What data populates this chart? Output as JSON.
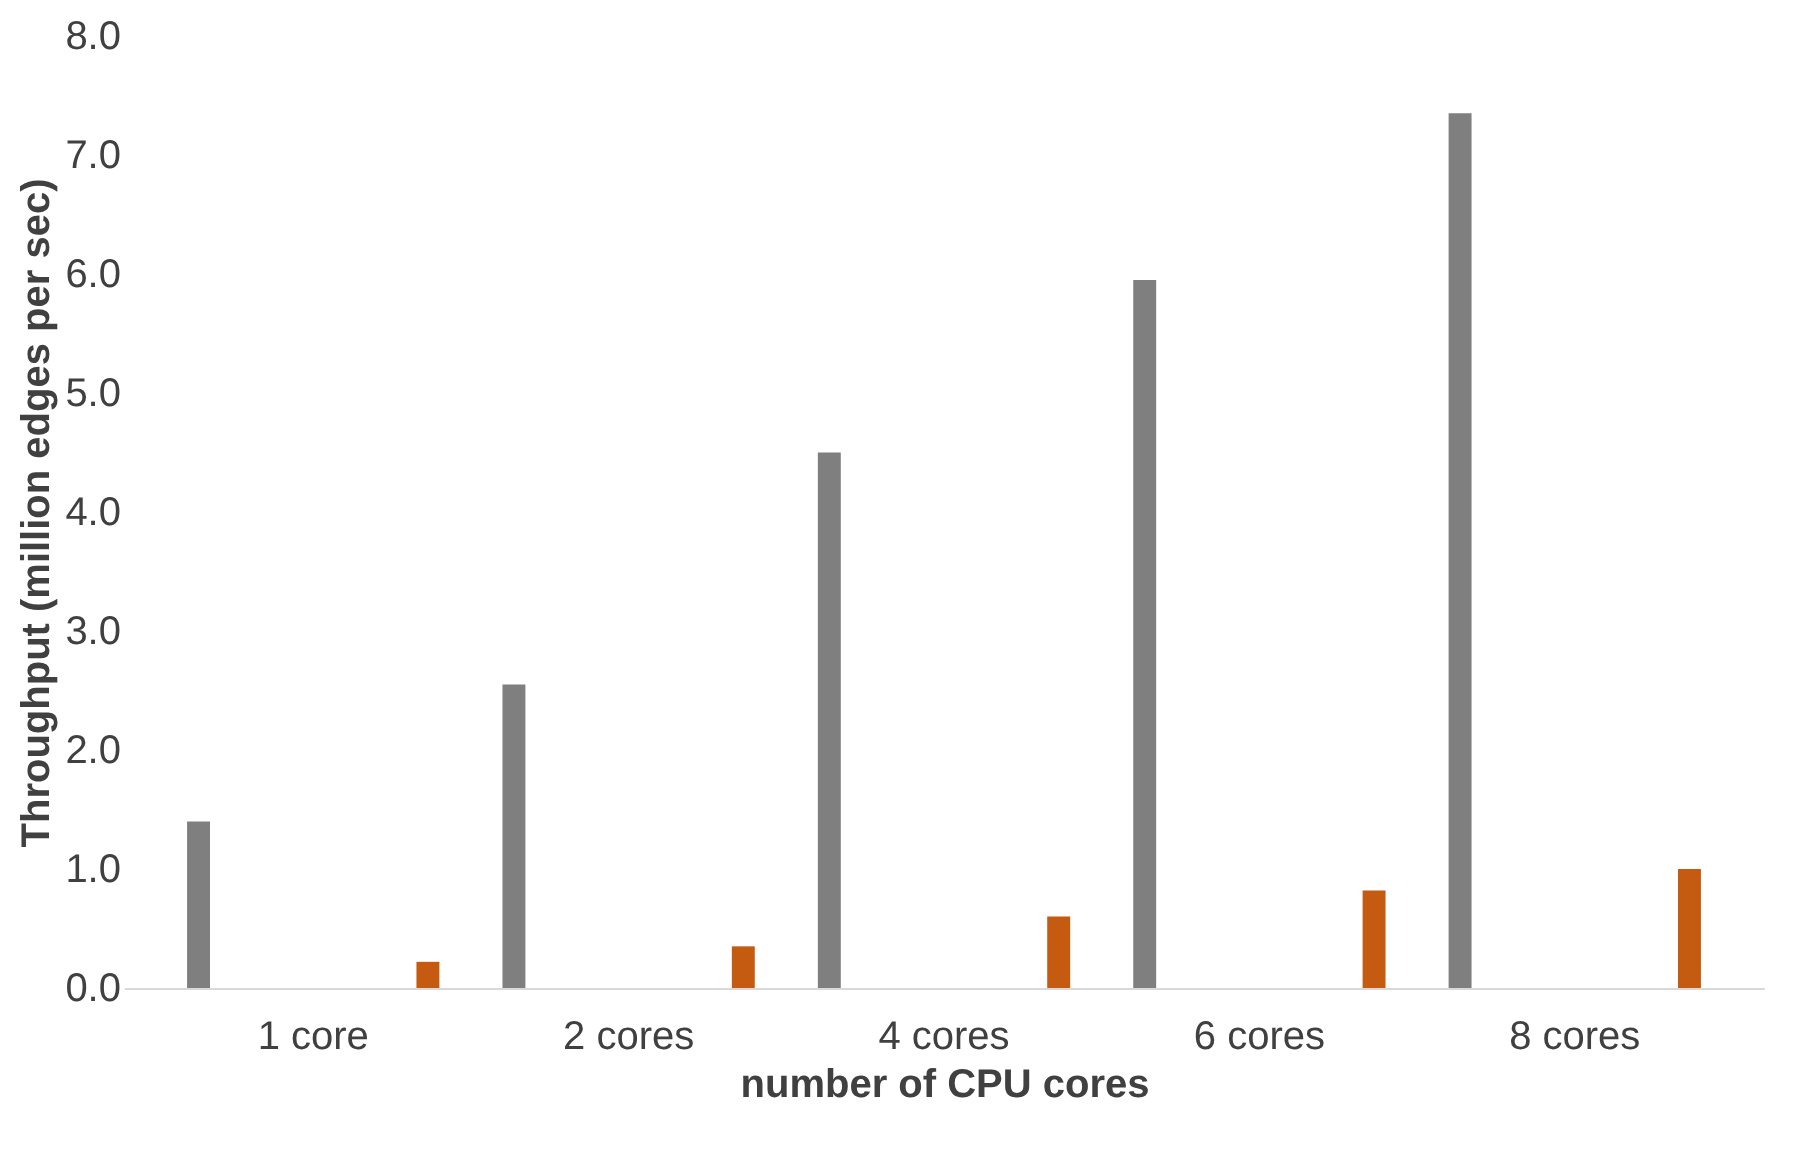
{
  "chart_data": {
    "type": "bar",
    "xlabel": "number of CPU cores",
    "ylabel": "Throughput (million edges per sec)",
    "categories": [
      "1 core",
      "2 cores",
      "4 cores",
      "6 cores",
      "8 cores"
    ],
    "series": [
      {
        "color": "#7f7f7f",
        "values": [
          1.4,
          2.55,
          4.5,
          5.95,
          7.35
        ]
      },
      {
        "color": "#c55a11",
        "values": [
          0.22,
          0.35,
          0.6,
          0.82,
          1.0
        ]
      }
    ],
    "ylim": [
      0,
      8
    ],
    "yticks": [
      {
        "value": 0,
        "label": "0.0"
      },
      {
        "value": 1,
        "label": "1.0"
      },
      {
        "value": 2,
        "label": "2.0"
      },
      {
        "value": 3,
        "label": "3.0"
      },
      {
        "value": 4,
        "label": "4.0"
      },
      {
        "value": 5,
        "label": "5.0"
      },
      {
        "value": 6,
        "label": "6.0"
      },
      {
        "value": 7,
        "label": "7.0"
      },
      {
        "value": 8,
        "label": "8.0"
      }
    ],
    "grid": false,
    "legend": false
  }
}
